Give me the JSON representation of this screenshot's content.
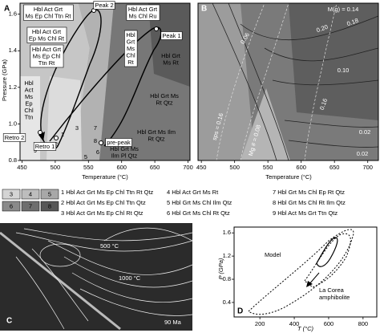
{
  "panel_a": {
    "letter": "A",
    "x_label": "Temperature (°C)",
    "y_label": "Pressure (GPa)",
    "xlim": [
      447,
      703
    ],
    "xticks": [
      450,
      500,
      550,
      600,
      650,
      700
    ],
    "ylim": [
      0.8,
      1.66
    ],
    "yticks": [
      0.8,
      {
        "value": 1,
        "label": "1.0"
      },
      1.2,
      1.4,
      1.6
    ],
    "field_labels": [
      [
        "Hbl Act Grt",
        "Ms Ep Chl Ttn Rt"
      ],
      [
        "Hbl Act Grt",
        "Ep Ms Chl Rt"
      ],
      [
        "Hbl Act Grt",
        "Ms Ep Chl",
        "Ttn Rt"
      ],
      [
        "Hbl Act Grt",
        "Ms Chl Ru"
      ],
      [
        "Hbl",
        "Grt",
        "Ms",
        "Chl",
        "Rt"
      ],
      [
        "Hbl Grt",
        "Ms Rt"
      ],
      [
        "Hbl",
        "Act",
        "Ms",
        "Ep",
        "Chl",
        "Ttn"
      ],
      [
        "Hbl Grt Ms",
        "Rt Qtz"
      ],
      [
        "Hbl Grt Ms Ilm",
        "Rt Qtz"
      ],
      [
        "Hbl Grt Ms",
        "Ilm Pl Qtz"
      ]
    ],
    "field_numbers": [
      "4",
      "1",
      "2",
      "3",
      "7",
      "8",
      "5",
      "6",
      "9"
    ],
    "points": [
      "Peak 2",
      "Peak 1",
      "pre-peak",
      "Retro 1",
      "Retro 2"
    ]
  },
  "panel_b": {
    "letter": "B",
    "x_label": "Temperature (°C)",
    "xlim": [
      445,
      716
    ],
    "xticks": [
      450,
      500,
      550,
      600,
      650,
      700
    ],
    "labels": [
      "M(g) = 0.14",
      "0.20",
      "0.18",
      "0.10",
      "0.06",
      "0.16",
      "0.02",
      "0.02",
      "sps = 0.16",
      "Mg # = 0.08"
    ]
  },
  "legend": {
    "swatches": [
      {
        "label": "3",
        "color": "#d4d4d4"
      },
      {
        "label": "4",
        "color": "#bdbdbd"
      },
      {
        "label": "5",
        "color": "#a8a8a8"
      },
      {
        "label": "6",
        "color": "#8a8a8a"
      },
      {
        "label": "7",
        "color": "#6e6e6e"
      },
      {
        "label": "8",
        "color": "#575757"
      }
    ],
    "items": [
      "1 Hbl Act Grt Ms Ep Chl Ttn Rt Qtz",
      "2 Hbl Act Grt Ms Ep Chl Ttn Qtz",
      "3 Hbl Act Grt Ms Ep Chl Rt Qtz",
      "4 Hbl Act Grt Ms Rt",
      "5 Hbl Grt Ms Chl Ilm Qtz",
      "6 Hbl Grt Ms Chl Rt Qtz",
      "7 Hbl Grt Ms Chl Ep Rt Qtz",
      "8 Hbl Grt Ms Chl Rt Ilm Qtz",
      "9 Hbl Act Ms Grt Ttn Qtz"
    ]
  },
  "panel_c": {
    "letter": "C",
    "labels": [
      "500 °C",
      "1000 °C"
    ],
    "age": "90 Ma"
  },
  "panel_d": {
    "letter": "D",
    "x_label": "T (°C)",
    "y_label": "P (GPa)",
    "xlim": [
      50,
      880
    ],
    "xticks": [
      200,
      400,
      600,
      800
    ],
    "ylim": [
      0.15,
      1.7
    ],
    "yticks": [
      0.4,
      0.8,
      1.2,
      1.6
    ],
    "labels": [
      "Model",
      "La Corea",
      "amphibolite"
    ]
  }
}
